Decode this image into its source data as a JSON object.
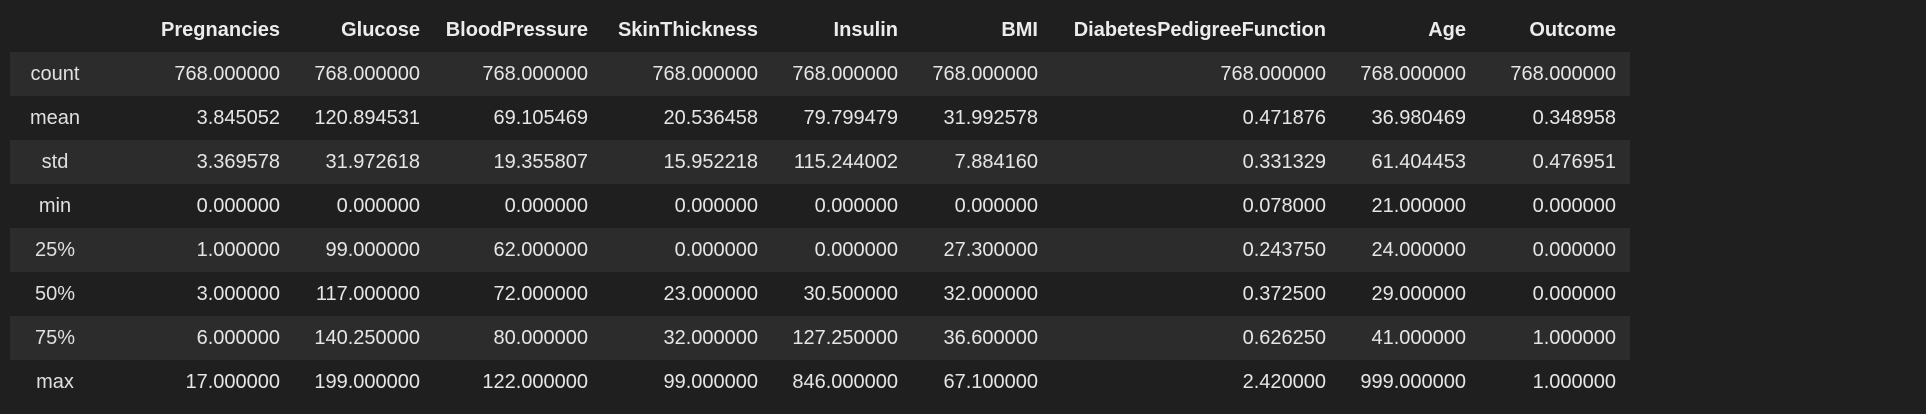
{
  "table": {
    "columns": [
      "Pregnancies",
      "Glucose",
      "BloodPressure",
      "SkinThickness",
      "Insulin",
      "BMI",
      "DiabetesPedigreeFunction",
      "Age",
      "Outcome"
    ],
    "rows": [
      {
        "label": "count",
        "values": [
          "768.000000",
          "768.000000",
          "768.000000",
          "768.000000",
          "768.000000",
          "768.000000",
          "768.000000",
          "768.000000",
          "768.000000"
        ]
      },
      {
        "label": "mean",
        "values": [
          "3.845052",
          "120.894531",
          "69.105469",
          "20.536458",
          "79.799479",
          "31.992578",
          "0.471876",
          "36.980469",
          "0.348958"
        ]
      },
      {
        "label": "std",
        "values": [
          "3.369578",
          "31.972618",
          "19.355807",
          "15.952218",
          "115.244002",
          "7.884160",
          "0.331329",
          "61.404453",
          "0.476951"
        ]
      },
      {
        "label": "min",
        "values": [
          "0.000000",
          "0.000000",
          "0.000000",
          "0.000000",
          "0.000000",
          "0.000000",
          "0.078000",
          "21.000000",
          "0.000000"
        ]
      },
      {
        "label": "25%",
        "values": [
          "1.000000",
          "99.000000",
          "62.000000",
          "0.000000",
          "0.000000",
          "27.300000",
          "0.243750",
          "24.000000",
          "0.000000"
        ]
      },
      {
        "label": "50%",
        "values": [
          "3.000000",
          "117.000000",
          "72.000000",
          "23.000000",
          "30.500000",
          "32.000000",
          "0.372500",
          "29.000000",
          "0.000000"
        ]
      },
      {
        "label": "75%",
        "values": [
          "6.000000",
          "140.250000",
          "80.000000",
          "32.000000",
          "127.250000",
          "36.600000",
          "0.626250",
          "41.000000",
          "1.000000"
        ]
      },
      {
        "label": "max",
        "values": [
          "17.000000",
          "199.000000",
          "122.000000",
          "99.000000",
          "846.000000",
          "67.100000",
          "2.420000",
          "999.000000",
          "1.000000"
        ]
      }
    ]
  }
}
